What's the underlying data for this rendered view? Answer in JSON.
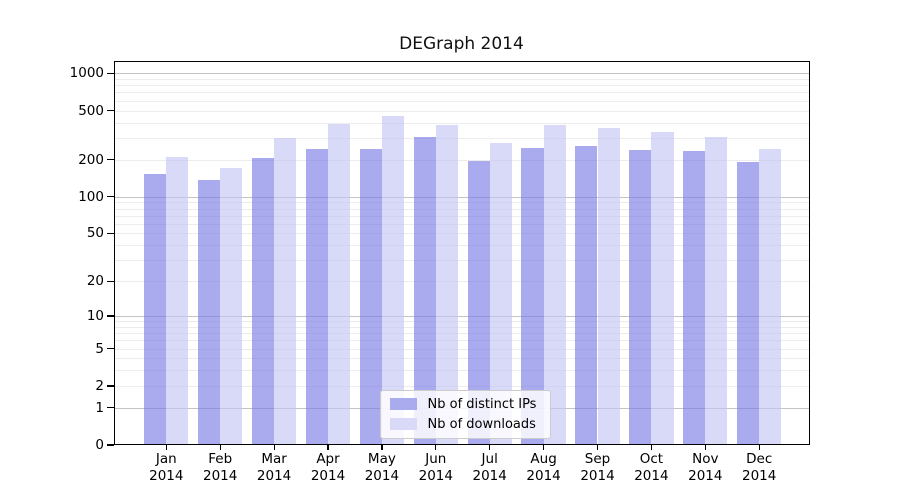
{
  "figure": {
    "background": "#ffffff"
  },
  "chart_data": {
    "type": "bar",
    "title": "DEGraph 2014",
    "categories": [
      "Jan 2014",
      "Feb 2014",
      "Mar 2014",
      "Apr 2014",
      "May 2014",
      "Jun 2014",
      "Jul 2014",
      "Aug 2014",
      "Sep 2014",
      "Oct 2014",
      "Nov 2014",
      "Dec 2014"
    ],
    "xtick_lines": [
      {
        "month": "Jan",
        "year": "2014"
      },
      {
        "month": "Feb",
        "year": "2014"
      },
      {
        "month": "Mar",
        "year": "2014"
      },
      {
        "month": "Apr",
        "year": "2014"
      },
      {
        "month": "May",
        "year": "2014"
      },
      {
        "month": "Jun",
        "year": "2014"
      },
      {
        "month": "Jul",
        "year": "2014"
      },
      {
        "month": "Aug",
        "year": "2014"
      },
      {
        "month": "Sep",
        "year": "2014"
      },
      {
        "month": "Oct",
        "year": "2014"
      },
      {
        "month": "Nov",
        "year": "2014"
      },
      {
        "month": "Dec",
        "year": "2014"
      }
    ],
    "series": [
      {
        "name": "Nb of distinct IPs",
        "color": "#aaaaee",
        "values": [
          152,
          138,
          207,
          245,
          242,
          303,
          196,
          247,
          260,
          240,
          235,
          190
        ]
      },
      {
        "name": "Nb of downloads",
        "color": "#d9d9f8",
        "values": [
          212,
          172,
          300,
          392,
          452,
          385,
          275,
          380,
          360,
          335,
          305,
          245
        ]
      }
    ],
    "xlabel": "",
    "ylabel": "",
    "yscale": "log1p",
    "yticks": [
      0,
      1,
      2,
      5,
      10,
      20,
      50,
      100,
      200,
      500,
      1000
    ],
    "ytick_labels": [
      "0",
      "1",
      "2",
      "5",
      "10",
      "20",
      "50",
      "100",
      "200",
      "500",
      "1000"
    ],
    "ylim": [
      0,
      1260
    ],
    "grid": {
      "on": true,
      "major": [
        1,
        10,
        100,
        1000
      ]
    },
    "legend_position": "lower center"
  }
}
